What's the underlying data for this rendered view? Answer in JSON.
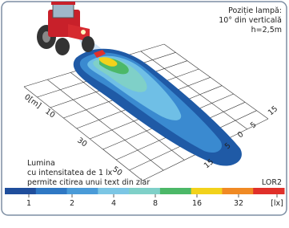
{
  "lamp_position": {
    "title": "Poziție lampă:",
    "angle": "10° din verticală",
    "height": "h=2,5m"
  },
  "distance_labels": [
    "0[m]",
    "10",
    "30",
    "50"
  ],
  "lateral_labels": [
    "15",
    "5",
    "0",
    "5",
    "15"
  ],
  "note": {
    "line1": "Lumina",
    "line2": "cu intensitatea de 1 lx",
    "line3": "permite citirea unui text din ziar"
  },
  "model": "LOR2",
  "scale": {
    "labels": [
      "1",
      "2",
      "4",
      "8",
      "16",
      "32",
      "[lx]"
    ]
  }
}
